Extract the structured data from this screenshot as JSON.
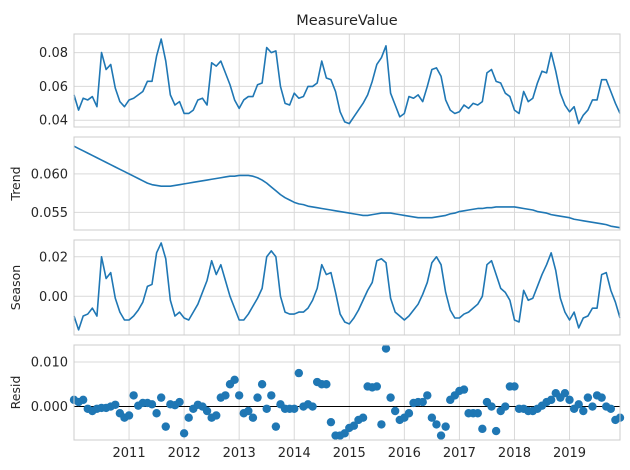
{
  "colors": {
    "line": "#1f77b4",
    "grid": "#d9d9d9",
    "frame": "#cccccc",
    "zero_line": "#000000",
    "background": "#ffffff"
  },
  "chart_data": [
    {
      "type": "line",
      "title": "MeasureValue",
      "ylabel": "",
      "x_start": "2010-01",
      "x_freq": "monthly",
      "xlim": [
        "2010-01",
        "2019-12"
      ],
      "ylim": [
        0.036,
        0.091
      ],
      "yticks": [
        "0.04",
        "0.06",
        "0.08"
      ],
      "xticks": [
        "2011",
        "2012",
        "2013",
        "2014",
        "2015",
        "2016",
        "2017",
        "2018",
        "2019"
      ],
      "show_xtick_labels": false,
      "grid": true,
      "series": [
        {
          "values": [
            0.055,
            0.046,
            0.053,
            0.052,
            0.054,
            0.048,
            0.08,
            0.07,
            0.073,
            0.059,
            0.051,
            0.048,
            0.052,
            0.053,
            0.055,
            0.057,
            0.063,
            0.063,
            0.078,
            0.088,
            0.075,
            0.055,
            0.049,
            0.051,
            0.044,
            0.044,
            0.046,
            0.052,
            0.053,
            0.049,
            0.074,
            0.072,
            0.075,
            0.068,
            0.061,
            0.052,
            0.047,
            0.052,
            0.054,
            0.054,
            0.061,
            0.062,
            0.083,
            0.08,
            0.081,
            0.06,
            0.05,
            0.049,
            0.056,
            0.053,
            0.054,
            0.06,
            0.06,
            0.062,
            0.075,
            0.065,
            0.064,
            0.057,
            0.045,
            0.039,
            0.038,
            0.042,
            0.046,
            0.05,
            0.055,
            0.063,
            0.073,
            0.077,
            0.084,
            0.056,
            0.049,
            0.042,
            0.044,
            0.054,
            0.053,
            0.055,
            0.051,
            0.06,
            0.07,
            0.071,
            0.066,
            0.052,
            0.046,
            0.044,
            0.045,
            0.049,
            0.047,
            0.05,
            0.049,
            0.051,
            0.068,
            0.07,
            0.063,
            0.062,
            0.056,
            0.054,
            0.046,
            0.044,
            0.057,
            0.051,
            0.053,
            0.062,
            0.069,
            0.068,
            0.08,
            0.069,
            0.056,
            0.049,
            0.045,
            0.048,
            0.038,
            0.043,
            0.046,
            0.052,
            0.052,
            0.064,
            0.064,
            0.057,
            0.05,
            0.044
          ]
        }
      ]
    },
    {
      "type": "line",
      "title": "",
      "ylabel": "Trend",
      "x_start": "2010-01",
      "x_freq": "monthly",
      "xlim": [
        "2010-01",
        "2019-12"
      ],
      "ylim": [
        0.0527,
        0.0648
      ],
      "yticks": [
        "0.055",
        "0.060"
      ],
      "xticks": [
        "2011",
        "2012",
        "2013",
        "2014",
        "2015",
        "2016",
        "2017",
        "2018",
        "2019"
      ],
      "show_xtick_labels": false,
      "grid": true,
      "series": [
        {
          "values": [
            0.0636,
            0.0633,
            0.063,
            0.0627,
            0.0624,
            0.0621,
            0.0618,
            0.0615,
            0.0612,
            0.0609,
            0.0606,
            0.0603,
            0.06,
            0.0597,
            0.0594,
            0.0591,
            0.0588,
            0.0586,
            0.0585,
            0.0584,
            0.0584,
            0.0584,
            0.0585,
            0.0586,
            0.0587,
            0.0588,
            0.0589,
            0.059,
            0.0591,
            0.0592,
            0.0593,
            0.0594,
            0.0595,
            0.0596,
            0.0597,
            0.0597,
            0.0598,
            0.0598,
            0.0598,
            0.0597,
            0.0595,
            0.0592,
            0.0588,
            0.0583,
            0.0578,
            0.0573,
            0.0569,
            0.0566,
            0.0563,
            0.0561,
            0.056,
            0.0558,
            0.0557,
            0.0556,
            0.0555,
            0.0554,
            0.0553,
            0.0552,
            0.0551,
            0.055,
            0.0549,
            0.0548,
            0.0547,
            0.0546,
            0.0546,
            0.0547,
            0.0548,
            0.0549,
            0.0549,
            0.0549,
            0.0548,
            0.0547,
            0.0546,
            0.0545,
            0.0544,
            0.0543,
            0.0543,
            0.0543,
            0.0543,
            0.0544,
            0.0545,
            0.0546,
            0.0548,
            0.0549,
            0.0551,
            0.0552,
            0.0553,
            0.0554,
            0.0555,
            0.0555,
            0.0556,
            0.0556,
            0.0557,
            0.0557,
            0.0557,
            0.0557,
            0.0557,
            0.0556,
            0.0555,
            0.0554,
            0.0553,
            0.0551,
            0.055,
            0.0549,
            0.0547,
            0.0546,
            0.0545,
            0.0544,
            0.0543,
            0.0541,
            0.054,
            0.0539,
            0.0538,
            0.0537,
            0.0536,
            0.0535,
            0.0534,
            0.0532,
            0.0531,
            0.053
          ]
        }
      ]
    },
    {
      "type": "line",
      "title": "",
      "ylabel": "Season",
      "x_start": "2010-01",
      "x_freq": "monthly",
      "xlim": [
        "2010-01",
        "2019-12"
      ],
      "ylim": [
        -0.0196,
        0.0285
      ],
      "yticks": [
        "0.00",
        "0.02"
      ],
      "xticks": [
        "2011",
        "2012",
        "2013",
        "2014",
        "2015",
        "2016",
        "2017",
        "2018",
        "2019"
      ],
      "show_xtick_labels": false,
      "grid": true,
      "series": [
        {
          "values": [
            -0.01,
            -0.017,
            -0.01,
            -0.009,
            -0.006,
            -0.01,
            0.02,
            0.009,
            0.012,
            -0.001,
            -0.008,
            -0.012,
            -0.012,
            -0.01,
            -0.007,
            -0.003,
            0.005,
            0.006,
            0.022,
            0.027,
            0.019,
            -0.002,
            -0.01,
            -0.008,
            -0.011,
            -0.012,
            -0.008,
            -0.004,
            0.002,
            0.008,
            0.018,
            0.011,
            0.016,
            0.008,
            0.0,
            -0.006,
            -0.012,
            -0.012,
            -0.009,
            -0.005,
            -0.001,
            0.004,
            0.02,
            0.023,
            0.02,
            0.0,
            -0.008,
            -0.009,
            -0.009,
            -0.008,
            -0.008,
            -0.006,
            -0.002,
            0.004,
            0.016,
            0.011,
            0.012,
            0.002,
            -0.009,
            -0.013,
            -0.014,
            -0.011,
            -0.007,
            -0.002,
            0.003,
            0.007,
            0.018,
            0.019,
            0.017,
            -0.001,
            -0.008,
            -0.01,
            -0.012,
            -0.01,
            -0.007,
            -0.004,
            0.001,
            0.007,
            0.017,
            0.02,
            0.016,
            0.002,
            -0.007,
            -0.011,
            -0.011,
            -0.009,
            -0.008,
            -0.006,
            -0.004,
            0.0,
            0.016,
            0.018,
            0.011,
            0.004,
            0.002,
            -0.002,
            -0.012,
            -0.013,
            0.003,
            -0.002,
            -0.001,
            0.005,
            0.011,
            0.016,
            0.022,
            0.013,
            -0.001,
            -0.008,
            -0.012,
            -0.008,
            -0.016,
            -0.011,
            -0.01,
            -0.006,
            -0.006,
            0.011,
            0.012,
            0.003,
            -0.003,
            -0.011
          ]
        }
      ]
    },
    {
      "type": "scatter",
      "title": "",
      "ylabel": "Resid",
      "x_start": "2010-01",
      "x_freq": "monthly",
      "xlim": [
        "2010-01",
        "2019-12"
      ],
      "ylim": [
        -0.0075,
        0.0138
      ],
      "yticks": [
        "0.000",
        "0.010"
      ],
      "xticks": [
        "2011",
        "2012",
        "2013",
        "2014",
        "2015",
        "2016",
        "2017",
        "2018",
        "2019"
      ],
      "show_xtick_labels": true,
      "zero_line": true,
      "grid": true,
      "series": [
        {
          "values": [
            0.0015,
            0.001,
            0.0015,
            -0.0005,
            -0.001,
            -0.0005,
            -0.0003,
            -0.0003,
            0.0,
            0.0004,
            -0.0015,
            -0.0025,
            -0.002,
            0.0025,
            0.0002,
            0.0008,
            0.0008,
            0.0005,
            -0.0015,
            0.002,
            -0.0045,
            0.0005,
            0.0003,
            0.001,
            -0.006,
            -0.0025,
            -0.0005,
            0.0004,
            0.0,
            -0.001,
            -0.0025,
            -0.002,
            0.002,
            0.0025,
            0.005,
            0.006,
            0.0025,
            -0.0015,
            -0.001,
            -0.0025,
            0.002,
            0.005,
            -0.0005,
            0.0025,
            -0.0045,
            0.0005,
            -0.0005,
            -0.0005,
            -0.0005,
            0.0075,
            0.0,
            0.0005,
            0.0,
            0.0055,
            0.005,
            0.005,
            -0.0035,
            -0.0065,
            -0.0065,
            -0.006,
            -0.0048,
            -0.0043,
            -0.003,
            -0.0025,
            0.0045,
            0.0043,
            0.0045,
            -0.004,
            0.013,
            0.002,
            -0.001,
            -0.003,
            -0.0025,
            -0.0015,
            0.0008,
            0.001,
            0.001,
            0.0025,
            -0.0025,
            -0.004,
            -0.0065,
            -0.0045,
            0.0015,
            0.0025,
            0.0035,
            0.0038,
            -0.0015,
            -0.0015,
            -0.0015,
            -0.005,
            0.001,
            0.0,
            -0.0055,
            -0.001,
            0.0,
            0.0045,
            0.0045,
            -0.0005,
            -0.0005,
            -0.001,
            -0.001,
            -0.0005,
            0.0002,
            0.001,
            0.0015,
            0.003,
            0.002,
            0.003,
            0.0015,
            -0.0005,
            0.0005,
            -0.001,
            0.002,
            0.0,
            0.0025,
            0.002,
            0.0,
            -0.0005,
            -0.003,
            -0.0025
          ]
        }
      ]
    }
  ]
}
